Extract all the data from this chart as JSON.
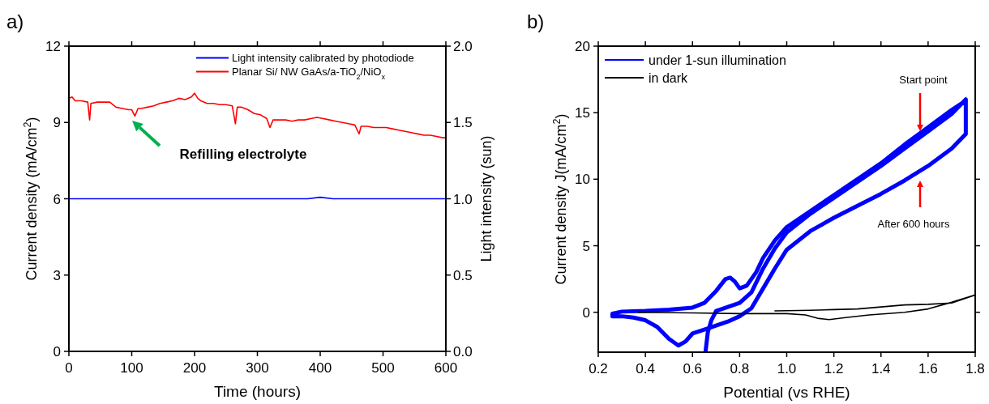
{
  "chart_data": [
    {
      "type": "line",
      "xlabel": "Time (hours)",
      "ylabel": "Current density (mA/cm$^{2}$)",
      "y2label": "Light intensity (sun)",
      "xlim": [
        0,
        600
      ],
      "xticks": [
        0,
        100,
        200,
        300,
        400,
        500,
        600
      ],
      "ylim": [
        0,
        12
      ],
      "yticks": [
        0,
        3,
        6,
        9,
        12
      ],
      "y2lim": [
        0,
        2
      ],
      "y2ticks": [
        {
          "value": 0,
          "label": "0.0"
        },
        {
          "value": 0.5,
          "label": "0.5"
        },
        {
          "value": 1,
          "label": "1.0"
        },
        {
          "value": 1.5,
          "label": "1.5"
        },
        {
          "value": 2,
          "label": "2.0"
        }
      ],
      "legend": "top right",
      "grid": false,
      "annotations": [
        "a)",
        "Refilling electrolyte"
      ],
      "series": [
        {
          "name": "Light intensity calibrated by photodiode",
          "color": "#0000ff",
          "axis": "y2",
          "x": [
            0,
            100,
            200,
            300,
            380,
            400,
            420,
            500,
            600
          ],
          "values": [
            1.0,
            1.0,
            1.0,
            1.0,
            1.0,
            1.01,
            1.0,
            1.0,
            1.0
          ]
        },
        {
          "name": "Planar Si/ NW GaAs/a-TiO$_{2}$/NiO$_{x}$",
          "color": "#ff0000",
          "x": [
            0,
            5,
            10,
            20,
            30,
            33,
            35,
            45,
            55,
            65,
            75,
            85,
            95,
            100,
            105,
            110,
            115,
            125,
            135,
            145,
            155,
            165,
            175,
            185,
            195,
            200,
            205,
            210,
            220,
            230,
            240,
            250,
            260,
            265,
            268,
            275,
            285,
            295,
            305,
            315,
            320,
            325,
            335,
            345,
            355,
            365,
            375,
            385,
            395,
            405,
            415,
            425,
            435,
            445,
            455,
            462,
            465,
            475,
            485,
            495,
            505,
            515,
            525,
            535,
            545,
            555,
            565,
            575,
            585,
            595,
            600
          ],
          "values": [
            9.95,
            10.0,
            9.85,
            9.85,
            9.8,
            9.1,
            9.75,
            9.8,
            9.8,
            9.8,
            9.6,
            9.55,
            9.5,
            9.5,
            9.25,
            9.55,
            9.55,
            9.6,
            9.65,
            9.75,
            9.8,
            9.85,
            9.95,
            9.9,
            10.0,
            10.15,
            9.95,
            9.85,
            9.75,
            9.75,
            9.7,
            9.7,
            9.65,
            8.95,
            9.6,
            9.6,
            9.5,
            9.35,
            9.3,
            9.15,
            8.8,
            9.1,
            9.1,
            9.1,
            9.05,
            9.1,
            9.1,
            9.15,
            9.2,
            9.15,
            9.1,
            9.05,
            9.0,
            8.95,
            8.9,
            8.55,
            8.85,
            8.85,
            8.8,
            8.8,
            8.8,
            8.75,
            8.7,
            8.65,
            8.6,
            8.55,
            8.5,
            8.5,
            8.45,
            8.4,
            8.4
          ]
        }
      ]
    },
    {
      "type": "line",
      "xlabel": "Potential (vs RHE)",
      "ylabel": "Current density J(mA/cm$^{2}$)",
      "xlim": [
        0.2,
        1.8
      ],
      "xticks": [
        0.2,
        0.4,
        0.6,
        0.8,
        {
          "value": 1,
          "label": "1.0"
        },
        1.2,
        1.4,
        1.6,
        1.8
      ],
      "ylim": [
        -3,
        20
      ],
      "yticks": [
        0,
        5,
        10,
        15,
        20
      ],
      "legend": "top left",
      "grid": false,
      "annotations": [
        "b)",
        "Start point",
        "After 600 hours"
      ],
      "series": [
        {
          "name": "under 1-sun illumination",
          "color": "#0000ff",
          "x": [
            0.655,
            0.665,
            0.68,
            0.7,
            0.75,
            0.8,
            0.85,
            0.9,
            0.95,
            1.0,
            1.1,
            1.2,
            1.3,
            1.4,
            1.5,
            1.6,
            1.7,
            1.76,
            1.76,
            1.7,
            1.6,
            1.5,
            1.4,
            1.3,
            1.2,
            1.1,
            1.0,
            0.95,
            0.9,
            0.85,
            0.8,
            0.75,
            0.7,
            0.65,
            0.6,
            0.57,
            0.54,
            0.5,
            0.45,
            0.4,
            0.35,
            0.3,
            0.26,
            0.26,
            0.3,
            0.4,
            0.5,
            0.6,
            0.65,
            0.7,
            0.74,
            0.76,
            0.78,
            0.8,
            0.83,
            0.87,
            0.9,
            0.95,
            1.0,
            1.1,
            1.2,
            1.3,
            1.4,
            1.5,
            1.6,
            1.7,
            1.76
          ],
          "values": [
            -3,
            -1.5,
            -0.6,
            0.1,
            0.4,
            0.7,
            1.5,
            3.3,
            4.8,
            6.0,
            7.4,
            8.6,
            9.8,
            11.0,
            12.3,
            13.6,
            14.9,
            16.0,
            13.4,
            12.3,
            11.0,
            9.9,
            8.9,
            8.0,
            7.1,
            6.1,
            4.7,
            3.3,
            1.8,
            0.3,
            -0.3,
            -0.7,
            -1.0,
            -1.3,
            -1.6,
            -2.2,
            -2.5,
            -2.0,
            -1.1,
            -0.6,
            -0.4,
            -0.3,
            -0.3,
            -0.1,
            0.05,
            0.1,
            0.2,
            0.35,
            0.7,
            1.6,
            2.5,
            2.6,
            2.3,
            1.8,
            2.0,
            3.0,
            4.1,
            5.4,
            6.4,
            7.6,
            8.8,
            10.0,
            11.2,
            12.6,
            13.9,
            15.2,
            15.9
          ]
        },
        {
          "name": "in dark",
          "color": "#000000",
          "x": [
            0.37,
            0.6,
            0.8,
            1.0,
            1.08,
            1.13,
            1.18,
            1.25,
            1.35,
            1.5,
            1.6,
            1.7,
            1.8,
            1.7,
            1.6,
            1.5,
            1.4,
            1.3,
            1.2,
            1.1,
            0.95
          ],
          "values": [
            0.0,
            -0.05,
            -0.1,
            -0.1,
            -0.2,
            -0.45,
            -0.55,
            -0.4,
            -0.2,
            0.0,
            0.25,
            0.75,
            1.3,
            0.7,
            0.6,
            0.55,
            0.4,
            0.25,
            0.2,
            0.15,
            0.1
          ]
        }
      ]
    }
  ]
}
